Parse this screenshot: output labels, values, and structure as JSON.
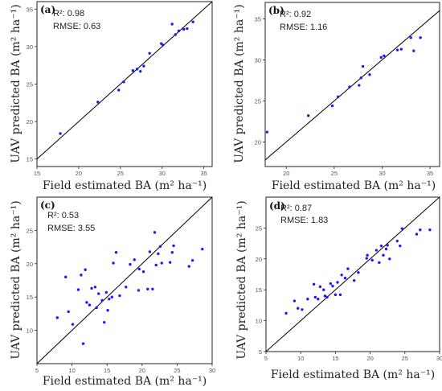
{
  "chart_data": [
    {
      "type": "scatter",
      "panel_label": "(a)",
      "stats": {
        "r2": "R²: 0.98",
        "rmse": "RMSE: 0.63"
      },
      "xlabel": "Field estimated BA (m² ha⁻¹)",
      "ylabel": "UAV predicted BA (m² ha⁻¹)",
      "xlim": [
        15,
        36
      ],
      "ylim": [
        14,
        36
      ],
      "xticks": [
        15,
        20,
        25,
        30,
        35
      ],
      "yticks": [
        15,
        20,
        25,
        30,
        35
      ],
      "one_to_one_line": true,
      "line_color": "#000000",
      "point_color": "#1a1aff",
      "points": [
        [
          17.8,
          18.4
        ],
        [
          22.3,
          22.6
        ],
        [
          24.8,
          24.2
        ],
        [
          25.4,
          25.3
        ],
        [
          26.5,
          26.8
        ],
        [
          27.0,
          27.0
        ],
        [
          27.4,
          26.7
        ],
        [
          27.8,
          27.4
        ],
        [
          28.5,
          29.1
        ],
        [
          29.9,
          30.4
        ],
        [
          30.1,
          30.2
        ],
        [
          31.2,
          33.0
        ],
        [
          31.6,
          31.6
        ],
        [
          32.0,
          32.1
        ],
        [
          32.6,
          32.3
        ],
        [
          33.0,
          32.4
        ],
        [
          33.7,
          33.3
        ]
      ]
    },
    {
      "type": "scatter",
      "panel_label": "(b)",
      "stats": {
        "r2": "R²: 0.92",
        "rmse": "RMSE: 1.16"
      },
      "xlabel": "Field estimated BA (m² ha⁻¹)",
      "ylabel": "UAV predicted BA (m² ha⁻¹)",
      "xlim": [
        17.8,
        36
      ],
      "ylim": [
        17,
        37
      ],
      "xticks": [
        20,
        25,
        30,
        35
      ],
      "yticks": [
        20,
        25,
        30,
        35
      ],
      "one_to_one_line": true,
      "line_color": "#000000",
      "point_color": "#1a1aff",
      "points": [
        [
          18.0,
          21.2
        ],
        [
          22.3,
          23.2
        ],
        [
          24.8,
          24.4
        ],
        [
          25.4,
          25.5
        ],
        [
          26.6,
          26.7
        ],
        [
          27.6,
          26.9
        ],
        [
          27.8,
          27.8
        ],
        [
          28.0,
          29.2
        ],
        [
          28.7,
          28.2
        ],
        [
          29.9,
          30.3
        ],
        [
          30.2,
          30.5
        ],
        [
          31.6,
          31.2
        ],
        [
          32.0,
          31.3
        ],
        [
          33.0,
          32.7
        ],
        [
          33.3,
          31.1
        ],
        [
          34.0,
          32.7
        ]
      ]
    },
    {
      "type": "scatter",
      "panel_label": "(c)",
      "stats": {
        "r2": "R²: 0.53",
        "rmse": "RMSE: 3.55"
      },
      "xlabel": "Field estimated BA (m² ha⁻¹)",
      "ylabel": "UAV predicted BA (m² ha⁻¹)",
      "xlim": [
        5,
        30
      ],
      "ylim": [
        5,
        30
      ],
      "xticks": [
        5,
        10,
        15,
        20,
        25,
        30
      ],
      "yticks": [
        10,
        15,
        20,
        25
      ],
      "one_to_one_line": true,
      "line_color": "#000000",
      "point_color": "#1a1aff",
      "points": [
        [
          7.9,
          11.9
        ],
        [
          9.1,
          18.0
        ],
        [
          9.5,
          12.8
        ],
        [
          10.1,
          10.9
        ],
        [
          10.9,
          16.1
        ],
        [
          11.3,
          18.3
        ],
        [
          11.6,
          8.0
        ],
        [
          11.9,
          19.1
        ],
        [
          12.1,
          14.2
        ],
        [
          12.5,
          13.8
        ],
        [
          12.8,
          16.3
        ],
        [
          13.3,
          16.5
        ],
        [
          13.5,
          13.4
        ],
        [
          13.8,
          15.5
        ],
        [
          14.3,
          14.5
        ],
        [
          14.6,
          11.2
        ],
        [
          14.9,
          15.7
        ],
        [
          15.1,
          13.0
        ],
        [
          15.3,
          14.7
        ],
        [
          15.7,
          15.0
        ],
        [
          15.9,
          20.1
        ],
        [
          16.3,
          21.7
        ],
        [
          16.8,
          15.2
        ],
        [
          17.7,
          16.5
        ],
        [
          18.3,
          19.9
        ],
        [
          18.9,
          20.6
        ],
        [
          19.5,
          16.0
        ],
        [
          19.6,
          19.2
        ],
        [
          20.2,
          18.8
        ],
        [
          20.8,
          16.2
        ],
        [
          21.1,
          21.8
        ],
        [
          21.5,
          16.2
        ],
        [
          21.8,
          24.7
        ],
        [
          22.0,
          19.8
        ],
        [
          22.3,
          21.5
        ],
        [
          22.6,
          22.6
        ],
        [
          22.8,
          20.1
        ],
        [
          24.0,
          20.2
        ],
        [
          24.3,
          21.7
        ],
        [
          24.5,
          22.7
        ],
        [
          26.7,
          19.6
        ],
        [
          27.2,
          20.5
        ],
        [
          28.6,
          22.2
        ]
      ]
    },
    {
      "type": "scatter",
      "panel_label": "(d)",
      "stats": {
        "r2": "R²: 0.87",
        "rmse": "RMSE: 1.83"
      },
      "xlabel": "Field estimated BA (m² ha⁻¹)",
      "ylabel": "UAV predicted BA (m² ha⁻¹)",
      "xlim": [
        5,
        30
      ],
      "ylim": [
        5,
        30
      ],
      "xticks": [
        5,
        10,
        15,
        20,
        25,
        30
      ],
      "yticks": [
        5,
        10,
        15,
        20,
        25
      ],
      "one_to_one_line": true,
      "line_color": "#000000",
      "point_color": "#1a1aff",
      "points": [
        [
          7.9,
          11.2
        ],
        [
          9.1,
          13.2
        ],
        [
          9.6,
          12.0
        ],
        [
          10.2,
          11.8
        ],
        [
          11.0,
          13.5
        ],
        [
          11.9,
          15.9
        ],
        [
          12.1,
          13.8
        ],
        [
          12.5,
          13.5
        ],
        [
          12.8,
          15.5
        ],
        [
          13.3,
          15.0
        ],
        [
          13.5,
          14.0
        ],
        [
          13.8,
          13.8
        ],
        [
          14.3,
          16.0
        ],
        [
          14.6,
          15.6
        ],
        [
          15.0,
          14.2
        ],
        [
          15.3,
          16.2
        ],
        [
          15.7,
          14.2
        ],
        [
          15.9,
          17.4
        ],
        [
          16.4,
          16.9
        ],
        [
          16.8,
          18.4
        ],
        [
          17.7,
          16.5
        ],
        [
          18.3,
          17.8
        ],
        [
          19.5,
          20.1
        ],
        [
          19.6,
          20.6
        ],
        [
          20.3,
          19.8
        ],
        [
          20.9,
          21.4
        ],
        [
          21.3,
          19.4
        ],
        [
          21.6,
          22.1
        ],
        [
          21.9,
          20.6
        ],
        [
          22.3,
          21.6
        ],
        [
          22.5,
          22.2
        ],
        [
          22.8,
          20.0
        ],
        [
          23.9,
          22.9
        ],
        [
          24.3,
          22.1
        ],
        [
          24.6,
          24.9
        ],
        [
          26.7,
          24.0
        ],
        [
          27.2,
          24.7
        ],
        [
          28.6,
          24.7
        ]
      ]
    }
  ]
}
